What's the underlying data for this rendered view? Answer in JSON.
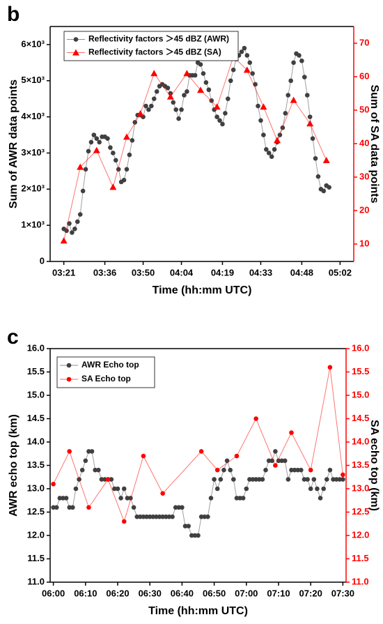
{
  "chart_data": [
    {
      "type": "line",
      "panel_label": "b",
      "x_label": "Time (hh:mm UTC)",
      "y_label": "Sum of AWR data points",
      "y2_label": "Sum of SA data points",
      "xlim": [
        "03:16",
        "05:07"
      ],
      "xticks": [
        "03:21",
        "03:36",
        "03:50",
        "04:04",
        "04:19",
        "04:33",
        "04:48",
        "05:02"
      ],
      "ylim": [
        0,
        6500
      ],
      "yticks": [
        0,
        {
          "value": 1000,
          "label": "1×10³"
        },
        {
          "value": 2000,
          "label": "2×10³"
        },
        {
          "value": 3000,
          "label": "3×10³"
        },
        {
          "value": 4000,
          "label": "4×10³"
        },
        {
          "value": 5000,
          "label": "5×10³"
        },
        {
          "value": 6000,
          "label": "6×10³"
        }
      ],
      "y2lim": [
        4.8,
        75
      ],
      "y2ticks": [
        10,
        20,
        30,
        40,
        50,
        60,
        70
      ],
      "y2_color": "#ff0000",
      "series": [
        {
          "name": "Reflectivity factors ＞45 dBZ (AWR)",
          "color": "#404040",
          "marker": "circle",
          "x": [
            "03:21",
            "03:22",
            "03:23",
            "03:24",
            "03:25",
            "03:26",
            "03:27",
            "03:28",
            "03:29",
            "03:30",
            "03:31",
            "03:32",
            "03:33",
            "03:34",
            "03:35",
            "03:36",
            "03:37",
            "03:38",
            "03:39",
            "03:40",
            "03:41",
            "03:42",
            "03:43",
            "03:44",
            "03:45",
            "03:46",
            "03:47",
            "03:48",
            "03:49",
            "03:50",
            "03:51",
            "03:52",
            "03:53",
            "03:54",
            "03:55",
            "03:56",
            "03:57",
            "03:58",
            "03:59",
            "04:00",
            "04:01",
            "04:02",
            "04:03",
            "04:04",
            "04:05",
            "04:06",
            "04:07",
            "04:08",
            "04:09",
            "04:10",
            "04:11",
            "04:12",
            "04:13",
            "04:14",
            "04:15",
            "04:16",
            "04:17",
            "04:18",
            "04:19",
            "04:20",
            "04:21",
            "04:22",
            "04:23",
            "04:24",
            "04:25",
            "04:26",
            "04:27",
            "04:28",
            "04:29",
            "04:30",
            "04:31",
            "04:32",
            "04:33",
            "04:34",
            "04:35",
            "04:36",
            "04:37",
            "04:38",
            "04:39",
            "04:40",
            "04:41",
            "04:42",
            "04:43",
            "04:44",
            "04:45",
            "04:46",
            "04:47",
            "04:48",
            "04:49",
            "04:50",
            "04:51",
            "04:52",
            "04:53",
            "04:54",
            "04:55",
            "04:56",
            "04:57",
            "04:58"
          ],
          "values": [
            900,
            850,
            1050,
            800,
            900,
            1100,
            1300,
            1950,
            2550,
            3050,
            3300,
            3500,
            3400,
            3300,
            3450,
            3450,
            3400,
            3150,
            3000,
            2800,
            2550,
            2200,
            2250,
            2550,
            2950,
            3350,
            3850,
            4050,
            4050,
            4000,
            4300,
            4200,
            4300,
            4500,
            4700,
            4850,
            4900,
            4850,
            4800,
            4650,
            4400,
            4200,
            3950,
            4200,
            4600,
            4700,
            5150,
            5150,
            5150,
            5500,
            5450,
            5200,
            4950,
            4750,
            4450,
            4200,
            4000,
            3900,
            3800,
            4100,
            4500,
            5000,
            5300,
            5600,
            5700,
            5800,
            5900,
            5700,
            5500,
            5200,
            4900,
            4300,
            3900,
            3500,
            3100,
            3000,
            2900,
            3100,
            3300,
            3500,
            3700,
            4100,
            4600,
            5000,
            5500,
            5750,
            5700,
            5550,
            5100,
            4600,
            4000,
            3400,
            2850,
            2350,
            2000,
            1950,
            2100,
            2050
          ]
        },
        {
          "name": "Reflectivity factors ＞45 dBZ (SA)",
          "color": "#ff0000",
          "marker": "triangle",
          "axis": "y2",
          "x": [
            "03:21",
            "03:27",
            "03:33",
            "03:39",
            "03:44",
            "03:49",
            "03:54",
            "04:00",
            "04:06",
            "04:11",
            "04:17",
            "04:23",
            "04:28",
            "04:34",
            "04:39",
            "04:45",
            "04:51",
            "04:57"
          ],
          "values": [
            11,
            33,
            38,
            27,
            42,
            49,
            61,
            54,
            61,
            56,
            51,
            66,
            62,
            51,
            41,
            53,
            46,
            35
          ]
        }
      ]
    },
    {
      "type": "line",
      "panel_label": "c",
      "x_label": "Time (hh:mm UTC)",
      "y_label": "AWR echo top (km)",
      "y2_label": "SA echo top (km)",
      "xlim": [
        "05:59",
        "07:31"
      ],
      "xticks": [
        "06:00",
        "06:10",
        "06:20",
        "06:30",
        "06:40",
        "06:50",
        "07:00",
        "07:10",
        "07:20",
        "07:30"
      ],
      "ylim": [
        11,
        16
      ],
      "yticks": [
        {
          "value": 11,
          "label": "11.0"
        },
        11.5,
        {
          "value": 12,
          "label": "12.0"
        },
        12.5,
        {
          "value": 13,
          "label": "13.0"
        },
        13.5,
        {
          "value": 14,
          "label": "14.0"
        },
        14.5,
        {
          "value": 15,
          "label": "15.0"
        },
        15.5,
        {
          "value": 16,
          "label": "16.0"
        }
      ],
      "y2lim": [
        11,
        16
      ],
      "y2ticks": [
        {
          "value": 11,
          "label": "11.0"
        },
        11.5,
        {
          "value": 12,
          "label": "12.0"
        },
        12.5,
        {
          "value": 13,
          "label": "13.0"
        },
        13.5,
        {
          "value": 14,
          "label": "14.0"
        },
        14.5,
        {
          "value": 15,
          "label": "15.0"
        },
        15.5,
        {
          "value": 16,
          "label": "16.0"
        }
      ],
      "y2_color": "#ff0000",
      "series": [
        {
          "name": "AWR Echo top",
          "color": "#404040",
          "marker": "circle",
          "x": [
            "06:00",
            "06:01",
            "06:02",
            "06:03",
            "06:04",
            "06:05",
            "06:06",
            "06:07",
            "06:08",
            "06:09",
            "06:10",
            "06:11",
            "06:12",
            "06:13",
            "06:14",
            "06:15",
            "06:16",
            "06:17",
            "06:18",
            "06:19",
            "06:20",
            "06:21",
            "06:22",
            "06:23",
            "06:24",
            "06:25",
            "06:26",
            "06:27",
            "06:28",
            "06:29",
            "06:30",
            "06:31",
            "06:32",
            "06:33",
            "06:34",
            "06:35",
            "06:36",
            "06:37",
            "06:38",
            "06:39",
            "06:40",
            "06:41",
            "06:42",
            "06:43",
            "06:44",
            "06:45",
            "06:46",
            "06:47",
            "06:48",
            "06:49",
            "06:50",
            "06:51",
            "06:52",
            "06:53",
            "06:54",
            "06:55",
            "06:56",
            "06:57",
            "06:58",
            "06:59",
            "07:00",
            "07:01",
            "07:02",
            "07:03",
            "07:04",
            "07:05",
            "07:06",
            "07:07",
            "07:08",
            "07:09",
            "07:10",
            "07:11",
            "07:12",
            "07:13",
            "07:14",
            "07:15",
            "07:16",
            "07:17",
            "07:18",
            "07:19",
            "07:20",
            "07:21",
            "07:22",
            "07:23",
            "07:24",
            "07:25",
            "07:26",
            "07:27",
            "07:28",
            "07:29",
            "07:30"
          ],
          "values": [
            12.6,
            12.6,
            12.8,
            12.8,
            12.8,
            12.6,
            12.6,
            13.0,
            13.2,
            13.4,
            13.6,
            13.8,
            13.8,
            13.4,
            13.4,
            13.2,
            13.2,
            13.2,
            13.2,
            13.0,
            13.0,
            12.8,
            13.0,
            12.8,
            12.8,
            12.6,
            12.4,
            12.4,
            12.4,
            12.4,
            12.4,
            12.4,
            12.4,
            12.4,
            12.4,
            12.4,
            12.4,
            12.4,
            12.6,
            12.6,
            12.6,
            12.2,
            12.2,
            12.0,
            12.0,
            12.0,
            12.4,
            12.4,
            12.4,
            12.8,
            13.2,
            13.0,
            13.2,
            13.4,
            13.6,
            13.4,
            13.2,
            12.8,
            12.8,
            12.8,
            13.0,
            13.2,
            13.2,
            13.2,
            13.2,
            13.2,
            13.4,
            13.6,
            13.6,
            13.8,
            13.6,
            13.6,
            13.6,
            13.2,
            13.4,
            13.4,
            13.4,
            13.4,
            13.2,
            13.2,
            13.0,
            13.2,
            13.0,
            12.8,
            13.0,
            13.2,
            13.4,
            13.2,
            13.2,
            13.2,
            13.2
          ]
        },
        {
          "name": "SA Echo top",
          "color": "#ff0000",
          "marker": "circle",
          "axis": "y2",
          "x": [
            "06:00",
            "06:05",
            "06:11",
            "06:17",
            "06:22",
            "06:28",
            "06:34",
            "06:46",
            "06:51",
            "06:57",
            "07:03",
            "07:09",
            "07:14",
            "07:20",
            "07:26",
            "07:30"
          ],
          "values": [
            13.1,
            13.8,
            12.6,
            13.2,
            12.3,
            13.7,
            12.9,
            13.8,
            13.4,
            13.7,
            14.5,
            13.5,
            14.2,
            13.4,
            15.6,
            13.3
          ]
        }
      ]
    }
  ]
}
